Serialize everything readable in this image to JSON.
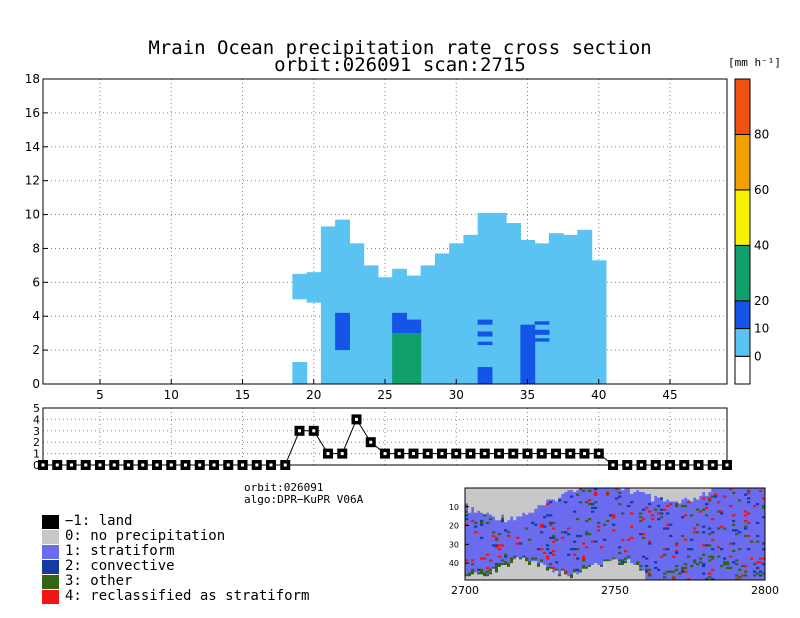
{
  "header": {
    "title": "Mrain Ocean precipitation rate cross section",
    "subtitle": "orbit:026091    scan:2715"
  },
  "chart_data": [
    {
      "type": "heatmap",
      "title": "Mrain Ocean precipitation rate cross section",
      "xlim": [
        1,
        49
      ],
      "ylim": [
        0,
        18
      ],
      "x_ticks": [
        5,
        10,
        15,
        20,
        25,
        30,
        35,
        40,
        45
      ],
      "y_ticks": [
        0,
        2,
        4,
        6,
        8,
        10,
        12,
        14,
        16,
        18
      ],
      "grid": true,
      "colorbar": {
        "unit": "[mm h⁻¹]",
        "bounds": [
          -10,
          0,
          10,
          20,
          40,
          60,
          80,
          100
        ],
        "labels": [
          "0",
          "10",
          "20",
          "40",
          "60",
          "80"
        ],
        "colors": [
          "#ffffff",
          "#5bc3f2",
          "#1454e6",
          "#0fa06b",
          "#f8f200",
          "#f2a200",
          "#f05010"
        ]
      },
      "columns": [
        {
          "ray": 19,
          "top": 6.5,
          "bottom": 5.0
        },
        {
          "ray": 20,
          "top": 6.6,
          "bottom": 4.8
        },
        {
          "ray": 21,
          "top": 9.3,
          "bottom": 0.0
        },
        {
          "ray": 22,
          "top": 9.7,
          "bottom": 0.0
        },
        {
          "ray": 23,
          "top": 8.3,
          "bottom": 0.0
        },
        {
          "ray": 24,
          "top": 7.0,
          "bottom": 0.0
        },
        {
          "ray": 25,
          "top": 6.3,
          "bottom": 0.0
        },
        {
          "ray": 26,
          "top": 6.8,
          "bottom": 0.0
        },
        {
          "ray": 27,
          "top": 6.4,
          "bottom": 0.0
        },
        {
          "ray": 28,
          "top": 7.0,
          "bottom": 0.0
        },
        {
          "ray": 29,
          "top": 7.7,
          "bottom": 0.0
        },
        {
          "ray": 30,
          "top": 8.3,
          "bottom": 0.0
        },
        {
          "ray": 31,
          "top": 8.8,
          "bottom": 0.0
        },
        {
          "ray": 32,
          "top": 10.1,
          "bottom": 0.0
        },
        {
          "ray": 33,
          "top": 10.1,
          "bottom": 0.0
        },
        {
          "ray": 34,
          "top": 9.5,
          "bottom": 0.0
        },
        {
          "ray": 35,
          "top": 8.5,
          "bottom": 0.0
        },
        {
          "ray": 36,
          "top": 8.3,
          "bottom": 0.0
        },
        {
          "ray": 37,
          "top": 8.9,
          "bottom": 0.0
        },
        {
          "ray": 38,
          "top": 8.8,
          "bottom": 0.0
        },
        {
          "ray": 39,
          "top": 9.1,
          "bottom": 0.0
        },
        {
          "ray": 40,
          "top": 7.3,
          "bottom": 0.0
        }
      ],
      "rain_cells": [
        {
          "ray": 19,
          "bottom": 0.0,
          "top": 1.3,
          "rate": 5
        },
        {
          "ray": 22,
          "bottom": 2.0,
          "top": 4.2,
          "rate": 15
        },
        {
          "ray": 26,
          "bottom": 3.0,
          "top": 4.2,
          "rate": 15
        },
        {
          "ray": 27,
          "bottom": 3.0,
          "top": 3.8,
          "rate": 15
        },
        {
          "ray": 26,
          "bottom": 0.0,
          "top": 3.0,
          "rate": 30
        },
        {
          "ray": 27,
          "bottom": 0.0,
          "top": 3.0,
          "rate": 30
        },
        {
          "ray": 32,
          "bottom": 3.5,
          "top": 3.8,
          "rate": 15
        },
        {
          "ray": 32,
          "bottom": 2.8,
          "top": 3.1,
          "rate": 15
        },
        {
          "ray": 32,
          "bottom": 2.3,
          "top": 2.5,
          "rate": 15
        },
        {
          "ray": 32,
          "bottom": 0.0,
          "top": 1.0,
          "rate": 15
        },
        {
          "ray": 35,
          "bottom": 0.0,
          "top": 3.5,
          "rate": 15
        },
        {
          "ray": 36,
          "bottom": 3.5,
          "top": 3.7,
          "rate": 15
        },
        {
          "ray": 36,
          "bottom": 2.9,
          "top": 3.2,
          "rate": 15
        },
        {
          "ray": 36,
          "bottom": 2.5,
          "top": 2.7,
          "rate": 15
        },
        {
          "ray": 40,
          "bottom": 4.0,
          "top": 4.2,
          "rate": 5
        }
      ]
    },
    {
      "type": "line",
      "xlim": [
        1,
        49
      ],
      "ylim": [
        0,
        5
      ],
      "y_ticks": [
        0,
        1,
        2,
        3,
        4,
        5
      ],
      "grid": true,
      "x": [
        1,
        2,
        3,
        4,
        5,
        6,
        7,
        8,
        9,
        10,
        11,
        12,
        13,
        14,
        15,
        16,
        17,
        18,
        19,
        20,
        21,
        22,
        23,
        24,
        25,
        26,
        27,
        28,
        29,
        30,
        31,
        32,
        33,
        34,
        35,
        36,
        37,
        38,
        39,
        40,
        41,
        42,
        43,
        44,
        45,
        46,
        47,
        48,
        49
      ],
      "values": [
        0,
        0,
        0,
        0,
        0,
        0,
        0,
        0,
        0,
        0,
        0,
        0,
        0,
        0,
        0,
        0,
        0,
        0,
        3,
        3,
        1,
        1,
        4,
        2,
        1,
        1,
        1,
        1,
        1,
        1,
        1,
        1,
        1,
        1,
        1,
        1,
        1,
        1,
        1,
        1,
        0,
        0,
        0,
        0,
        0,
        0,
        0,
        0,
        0
      ]
    },
    {
      "type": "heatmap",
      "x_ticks": [
        "2700",
        "2750",
        "2800"
      ],
      "y_ticks": [
        "10",
        "20",
        "30",
        "40"
      ]
    }
  ],
  "legend": {
    "items": [
      {
        "label": "−1: land",
        "color": "#000000"
      },
      {
        "label": "0: no precipitation",
        "color": "#c8c8c8"
      },
      {
        "label": "1: stratiform",
        "color": "#6b6bf0"
      },
      {
        "label": "2: convective",
        "color": "#143ca0"
      },
      {
        "label": "3: other",
        "color": "#326414"
      },
      {
        "label": "4: reclassified as stratiform",
        "color": "#f01414"
      }
    ]
  },
  "info": {
    "orbit": "orbit:026091",
    "algo": "algo:DPR−KuPR V06A"
  }
}
